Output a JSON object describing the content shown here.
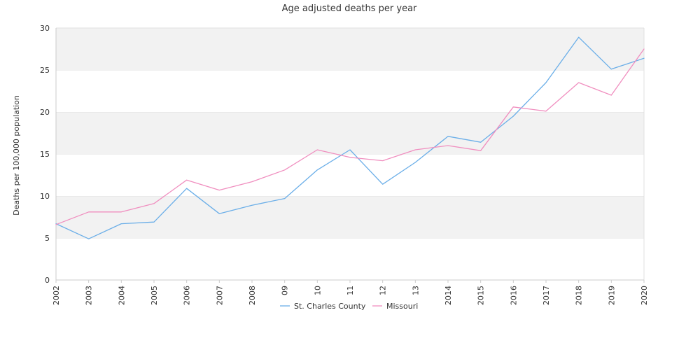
{
  "chart_data": {
    "type": "line",
    "title": "Age adjusted deaths per year",
    "xlabel": "",
    "ylabel": "Deaths per 100,000 population",
    "categories": [
      "2002",
      "2003",
      "2004",
      "2005",
      "2006",
      "2007",
      "2008",
      "09",
      "10",
      "11",
      "12",
      "13",
      "2014",
      "2015",
      "2016",
      "2017",
      "2018",
      "2019",
      "2020"
    ],
    "ylim": [
      0,
      30
    ],
    "yticks": [
      0,
      5,
      10,
      15,
      20,
      25,
      30
    ],
    "grid": "alternating horizontal bands",
    "legend_position": "bottom-center",
    "series": [
      {
        "name": "St. Charles County",
        "color": "#6aaee8",
        "values": [
          6.7,
          4.9,
          6.7,
          6.9,
          10.9,
          7.9,
          8.9,
          9.7,
          13.1,
          15.5,
          11.4,
          14.0,
          17.1,
          16.4,
          19.5,
          23.5,
          28.9,
          25.1,
          26.4
        ]
      },
      {
        "name": "Missouri",
        "color": "#f08ebf",
        "values": [
          6.6,
          8.1,
          8.1,
          9.1,
          11.9,
          10.7,
          11.7,
          13.1,
          15.5,
          14.6,
          14.2,
          15.5,
          16.0,
          15.4,
          20.6,
          20.1,
          23.5,
          22.0,
          27.5
        ]
      }
    ]
  }
}
